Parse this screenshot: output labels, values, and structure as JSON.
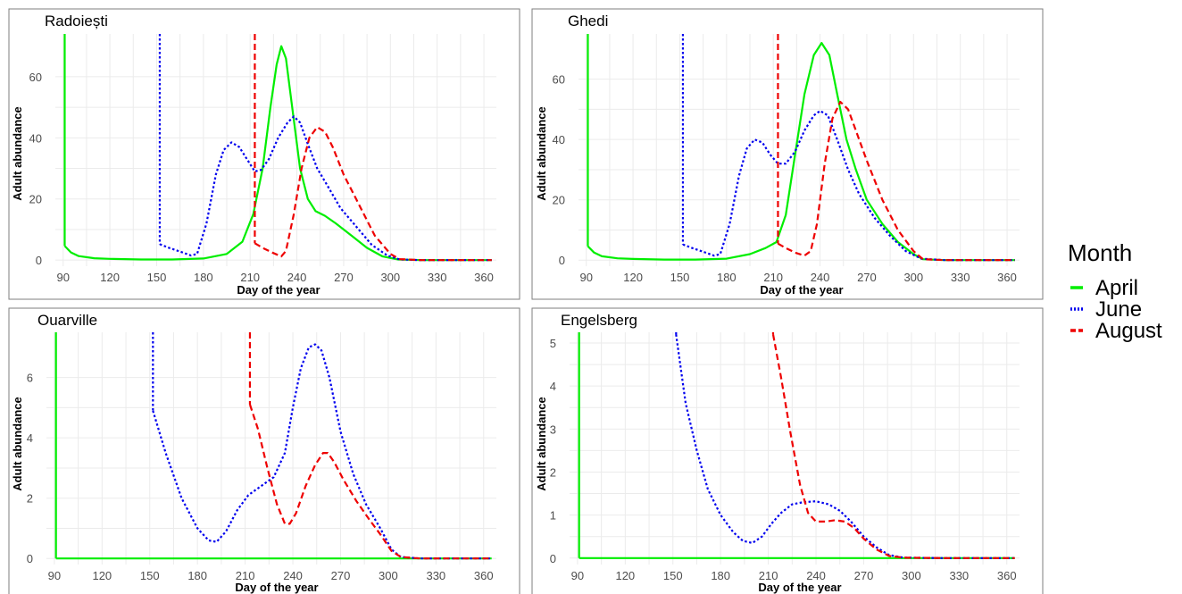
{
  "legend": {
    "title": "Month",
    "entries": [
      {
        "label": "April",
        "color": "#00ee00",
        "dash": "solid"
      },
      {
        "label": "June",
        "color": "#0000ee",
        "dash": "dotted"
      },
      {
        "label": "August",
        "color": "#ee0000",
        "dash": "dashed"
      }
    ]
  },
  "chart_data": [
    {
      "type": "line",
      "title": "Radoiești",
      "xlabel": "Day of the year",
      "ylabel": "Adult abundance",
      "xlim": [
        85,
        368
      ],
      "ylim": [
        -2,
        74
      ],
      "x_ticks": [
        90,
        120,
        150,
        180,
        210,
        240,
        270,
        300,
        330,
        360
      ],
      "y_ticks": [
        0,
        20,
        40,
        60
      ],
      "grid": true,
      "series": [
        {
          "name": "April",
          "start": 91,
          "points": [
            [
              91,
              4.6
            ],
            [
              95,
              2.5
            ],
            [
              100,
              1.3
            ],
            [
              110,
              0.6
            ],
            [
              120,
              0.4
            ],
            [
              140,
              0.2
            ],
            [
              160,
              0.2
            ],
            [
              180,
              0.5
            ],
            [
              195,
              2
            ],
            [
              205,
              6
            ],
            [
              212,
              15
            ],
            [
              218,
              30
            ],
            [
              223,
              50
            ],
            [
              227,
              64
            ],
            [
              230,
              70
            ],
            [
              233,
              66
            ],
            [
              237,
              50
            ],
            [
              242,
              30
            ],
            [
              247,
              20
            ],
            [
              252,
              16
            ],
            [
              258,
              14.5
            ],
            [
              265,
              12
            ],
            [
              275,
              8
            ],
            [
              285,
              4
            ],
            [
              295,
              1.2
            ],
            [
              305,
              0.2
            ],
            [
              320,
              0
            ],
            [
              365,
              0
            ]
          ]
        },
        {
          "name": "June",
          "start": 152,
          "points": [
            [
              152,
              5.2
            ],
            [
              158,
              4
            ],
            [
              165,
              2.8
            ],
            [
              172,
              1.5
            ],
            [
              176,
              2
            ],
            [
              182,
              12
            ],
            [
              188,
              28
            ],
            [
              193,
              36
            ],
            [
              198,
              38.5
            ],
            [
              203,
              37
            ],
            [
              208,
              33
            ],
            [
              213,
              29
            ],
            [
              217,
              29.5
            ],
            [
              222,
              33
            ],
            [
              228,
              40
            ],
            [
              234,
              45
            ],
            [
              238,
              47
            ],
            [
              242,
              45
            ],
            [
              247,
              38
            ],
            [
              253,
              30
            ],
            [
              260,
              24
            ],
            [
              268,
              17
            ],
            [
              278,
              11
            ],
            [
              288,
              5
            ],
            [
              298,
              1.5
            ],
            [
              306,
              0.2
            ],
            [
              320,
              0
            ],
            [
              365,
              0
            ]
          ]
        },
        {
          "name": "August",
          "start": 213,
          "points": [
            [
              213,
              5.5
            ],
            [
              218,
              4
            ],
            [
              224,
              2.5
            ],
            [
              230,
              1.2
            ],
            [
              233,
              3
            ],
            [
              238,
              15
            ],
            [
              243,
              30
            ],
            [
              248,
              40
            ],
            [
              253,
              43.5
            ],
            [
              258,
              42
            ],
            [
              263,
              37
            ],
            [
              270,
              28
            ],
            [
              280,
              18
            ],
            [
              290,
              8
            ],
            [
              300,
              2
            ],
            [
              306,
              0.3
            ],
            [
              320,
              0
            ],
            [
              365,
              0
            ]
          ]
        }
      ]
    },
    {
      "type": "line",
      "title": "Ghedi",
      "xlabel": "Day of the year",
      "ylabel": "Adult abundance",
      "xlim": [
        85,
        368
      ],
      "ylim": [
        -2,
        75
      ],
      "x_ticks": [
        90,
        120,
        150,
        180,
        210,
        240,
        270,
        300,
        330,
        360
      ],
      "y_ticks": [
        0,
        20,
        40,
        60
      ],
      "grid": true,
      "series": [
        {
          "name": "April",
          "start": 91,
          "points": [
            [
              91,
              4.6
            ],
            [
              95,
              2.5
            ],
            [
              100,
              1.3
            ],
            [
              110,
              0.6
            ],
            [
              120,
              0.4
            ],
            [
              140,
              0.2
            ],
            [
              160,
              0.2
            ],
            [
              180,
              0.5
            ],
            [
              195,
              2
            ],
            [
              205,
              4
            ],
            [
              212,
              6
            ],
            [
              218,
              15
            ],
            [
              224,
              35
            ],
            [
              230,
              55
            ],
            [
              236,
              68
            ],
            [
              241,
              72
            ],
            [
              246,
              68
            ],
            [
              251,
              55
            ],
            [
              257,
              40
            ],
            [
              263,
              30
            ],
            [
              270,
              20
            ],
            [
              280,
              12
            ],
            [
              290,
              6
            ],
            [
              300,
              2
            ],
            [
              306,
              0.3
            ],
            [
              320,
              0
            ],
            [
              365,
              0
            ]
          ]
        },
        {
          "name": "June",
          "start": 152,
          "points": [
            [
              152,
              5.2
            ],
            [
              158,
              4
            ],
            [
              165,
              2.8
            ],
            [
              172,
              1.5
            ],
            [
              176,
              2
            ],
            [
              182,
              12
            ],
            [
              188,
              28
            ],
            [
              193,
              37
            ],
            [
              198,
              40
            ],
            [
              203,
              39
            ],
            [
              208,
              35
            ],
            [
              213,
              32
            ],
            [
              218,
              32
            ],
            [
              224,
              36
            ],
            [
              230,
              43
            ],
            [
              236,
              48
            ],
            [
              240,
              49.5
            ],
            [
              245,
              48
            ],
            [
              251,
              40
            ],
            [
              258,
              30
            ],
            [
              265,
              22
            ],
            [
              275,
              14
            ],
            [
              285,
              8
            ],
            [
              295,
              3
            ],
            [
              305,
              0.5
            ],
            [
              320,
              0
            ],
            [
              365,
              0
            ]
          ]
        },
        {
          "name": "August",
          "start": 213,
          "points": [
            [
              213,
              5.5
            ],
            [
              218,
              4
            ],
            [
              224,
              2.5
            ],
            [
              230,
              1.5
            ],
            [
              234,
              3
            ],
            [
              238,
              12
            ],
            [
              243,
              32
            ],
            [
              248,
              47
            ],
            [
              253,
              52.5
            ],
            [
              258,
              50
            ],
            [
              263,
              43
            ],
            [
              270,
              33
            ],
            [
              280,
              20
            ],
            [
              290,
              10
            ],
            [
              300,
              3
            ],
            [
              306,
              0.3
            ],
            [
              320,
              0
            ],
            [
              365,
              0
            ]
          ]
        }
      ]
    },
    {
      "type": "line",
      "title": "Ouarville",
      "xlabel": "Day of the year",
      "ylabel": "Adult abundance",
      "xlim": [
        85,
        368
      ],
      "ylim": [
        -0.2,
        7.5
      ],
      "x_ticks": [
        90,
        120,
        150,
        180,
        210,
        240,
        270,
        300,
        330,
        360
      ],
      "y_ticks": [
        0,
        2,
        4,
        6
      ],
      "grid": true,
      "series": [
        {
          "name": "April",
          "start": 91,
          "points": [
            [
              91,
              0
            ],
            [
              365,
              0
            ]
          ]
        },
        {
          "name": "June",
          "start": 152,
          "points": [
            [
              152,
              4.9
            ],
            [
              160,
              3.5
            ],
            [
              170,
              2
            ],
            [
              180,
              1
            ],
            [
              187,
              0.6
            ],
            [
              192,
              0.55
            ],
            [
              198,
              0.9
            ],
            [
              205,
              1.6
            ],
            [
              212,
              2.1
            ],
            [
              220,
              2.4
            ],
            [
              228,
              2.7
            ],
            [
              235,
              3.5
            ],
            [
              240,
              5
            ],
            [
              245,
              6.3
            ],
            [
              250,
              7
            ],
            [
              254,
              7.1
            ],
            [
              258,
              6.9
            ],
            [
              263,
              6
            ],
            [
              270,
              4.2
            ],
            [
              278,
              2.8
            ],
            [
              286,
              1.8
            ],
            [
              295,
              1
            ],
            [
              302,
              0.3
            ],
            [
              308,
              0.05
            ],
            [
              320,
              0
            ],
            [
              365,
              0
            ]
          ]
        },
        {
          "name": "August",
          "start": 213,
          "points": [
            [
              213,
              5.1
            ],
            [
              218,
              4.3
            ],
            [
              224,
              3
            ],
            [
              230,
              1.8
            ],
            [
              235,
              1.15
            ],
            [
              238,
              1.15
            ],
            [
              242,
              1.5
            ],
            [
              248,
              2.4
            ],
            [
              254,
              3.1
            ],
            [
              259,
              3.5
            ],
            [
              262,
              3.5
            ],
            [
              266,
              3.2
            ],
            [
              272,
              2.6
            ],
            [
              280,
              1.9
            ],
            [
              288,
              1.3
            ],
            [
              295,
              0.8
            ],
            [
              302,
              0.25
            ],
            [
              308,
              0.05
            ],
            [
              320,
              0
            ],
            [
              365,
              0
            ]
          ]
        }
      ]
    },
    {
      "type": "line",
      "title": "Engelsberg",
      "xlabel": "Day of the year",
      "ylabel": "Adult abundance",
      "xlim": [
        85,
        368
      ],
      "ylim": [
        -0.15,
        5.25
      ],
      "x_ticks": [
        90,
        120,
        150,
        180,
        210,
        240,
        270,
        300,
        330,
        360
      ],
      "y_ticks": [
        0,
        1,
        2,
        3,
        4,
        5
      ],
      "grid": true,
      "series": [
        {
          "name": "April",
          "start": 91,
          "points": [
            [
              91,
              0
            ],
            [
              365,
              0
            ]
          ]
        },
        {
          "name": "June",
          "start": 152,
          "points": [
            [
              152,
              5.2
            ],
            [
              158,
              3.6
            ],
            [
              165,
              2.5
            ],
            [
              172,
              1.6
            ],
            [
              180,
              1
            ],
            [
              188,
              0.6
            ],
            [
              194,
              0.4
            ],
            [
              200,
              0.35
            ],
            [
              206,
              0.5
            ],
            [
              212,
              0.8
            ],
            [
              218,
              1.05
            ],
            [
              225,
              1.25
            ],
            [
              232,
              1.3
            ],
            [
              240,
              1.32
            ],
            [
              248,
              1.25
            ],
            [
              255,
              1.1
            ],
            [
              262,
              0.85
            ],
            [
              270,
              0.5
            ],
            [
              278,
              0.25
            ],
            [
              286,
              0.07
            ],
            [
              295,
              0.01
            ],
            [
              320,
              0
            ],
            [
              365,
              0
            ]
          ]
        },
        {
          "name": "August",
          "start": 213,
          "points": [
            [
              213,
              5.2
            ],
            [
              218,
              4.2
            ],
            [
              224,
              2.9
            ],
            [
              230,
              1.7
            ],
            [
              235,
              1.05
            ],
            [
              240,
              0.85
            ],
            [
              246,
              0.85
            ],
            [
              252,
              0.88
            ],
            [
              258,
              0.85
            ],
            [
              264,
              0.7
            ],
            [
              270,
              0.45
            ],
            [
              278,
              0.2
            ],
            [
              286,
              0.05
            ],
            [
              295,
              0.01
            ],
            [
              320,
              0
            ],
            [
              365,
              0
            ]
          ]
        }
      ]
    }
  ]
}
